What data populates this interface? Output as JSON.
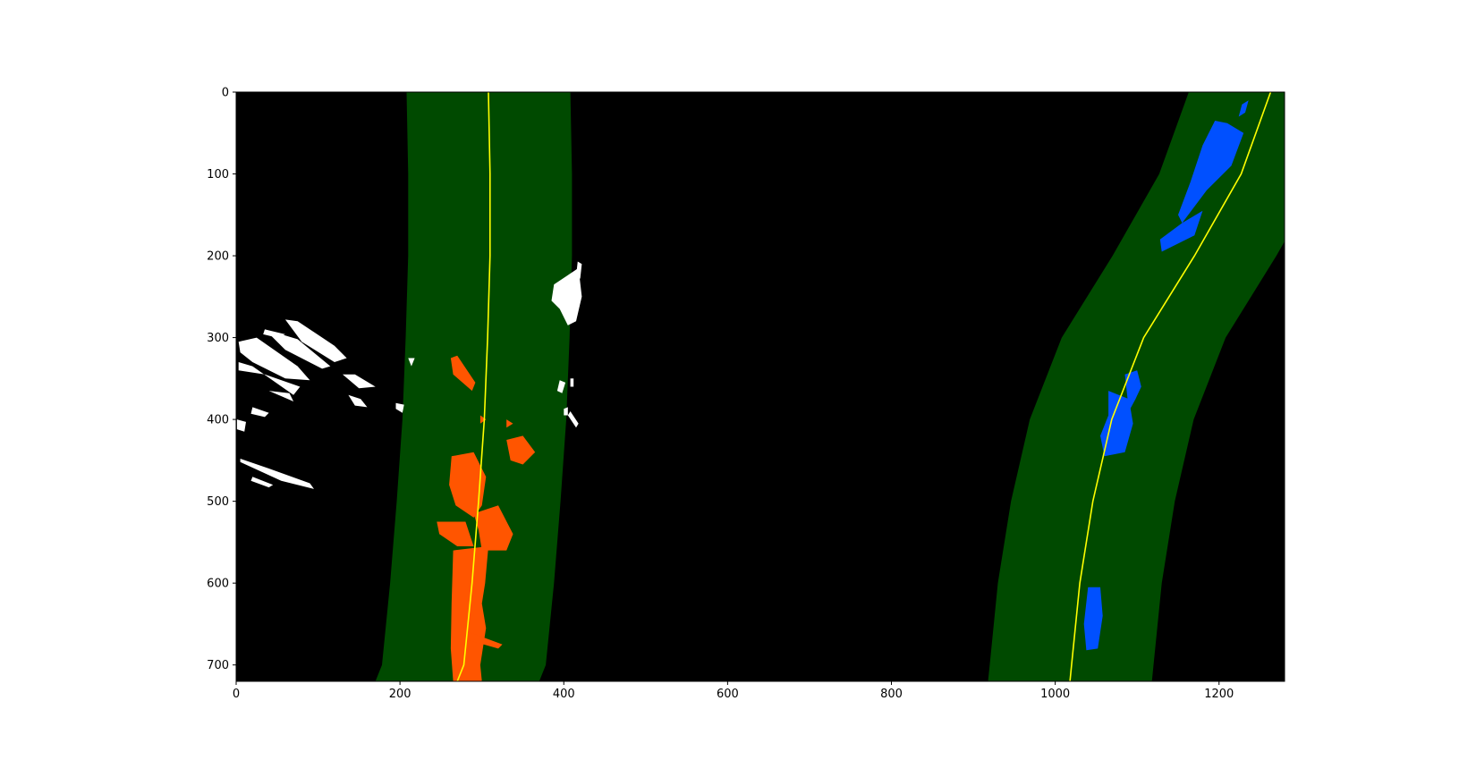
{
  "chart_data": {
    "type": "scatter",
    "title": "",
    "xlabel": "",
    "ylabel": "",
    "xlim": [
      0,
      1280
    ],
    "ylim": [
      720,
      0
    ],
    "y_axis_inverted": true,
    "grid": false,
    "background_color": "#000000",
    "x_ticks": [
      0,
      200,
      400,
      600,
      800,
      1000,
      1200
    ],
    "y_ticks": [
      0,
      100,
      200,
      300,
      400,
      500,
      600,
      700
    ],
    "search_windows": {
      "color": "#004a00",
      "margin": 100,
      "left_center": [
        [
          308,
          0
        ],
        [
          310,
          100
        ],
        [
          310,
          200
        ],
        [
          307,
          300
        ],
        [
          303,
          400
        ],
        [
          296,
          500
        ],
        [
          288,
          600
        ],
        [
          278,
          700
        ],
        [
          270,
          720
        ]
      ],
      "right_center": [
        [
          1263,
          0
        ],
        [
          1227,
          100
        ],
        [
          1170,
          200
        ],
        [
          1108,
          300
        ],
        [
          1069,
          400
        ],
        [
          1046,
          500
        ],
        [
          1030,
          600
        ],
        [
          1020,
          700
        ],
        [
          1018,
          720
        ]
      ]
    },
    "series": [
      {
        "type": "line",
        "color": "#ffff00",
        "points": [
          [
            308,
            0
          ],
          [
            310,
            100
          ],
          [
            310,
            200
          ],
          [
            307,
            300
          ],
          [
            303,
            400
          ],
          [
            296,
            500
          ],
          [
            288,
            600
          ],
          [
            278,
            700
          ],
          [
            270,
            720
          ]
        ]
      },
      {
        "type": "line",
        "color": "#ffff00",
        "points": [
          [
            1263,
            0
          ],
          [
            1227,
            100
          ],
          [
            1170,
            200
          ],
          [
            1108,
            300
          ],
          [
            1069,
            400
          ],
          [
            1046,
            500
          ],
          [
            1030,
            600
          ],
          [
            1020,
            700
          ],
          [
            1018,
            720
          ]
        ]
      },
      {
        "type": "pixels",
        "color": "#ff5500",
        "regions": [
          [
            [
              263,
              625
            ],
            [
              300,
              625
            ],
            [
              305,
              655
            ],
            [
              298,
              700
            ],
            [
              300,
              720
            ],
            [
              265,
              720
            ],
            [
              262,
              680
            ]
          ],
          [
            [
              265,
              560
            ],
            [
              308,
              555
            ],
            [
              304,
              600
            ],
            [
              300,
              625
            ],
            [
              263,
              625
            ]
          ],
          [
            [
              245,
              525
            ],
            [
              280,
              525
            ],
            [
              290,
              555
            ],
            [
              270,
              555
            ],
            [
              248,
              540
            ]
          ],
          [
            [
              290,
              515
            ],
            [
              320,
              505
            ],
            [
              338,
              540
            ],
            [
              330,
              560
            ],
            [
              300,
              560
            ],
            [
              296,
              535
            ]
          ],
          [
            [
              263,
              445
            ],
            [
              290,
              440
            ],
            [
              305,
              470
            ],
            [
              300,
              505
            ],
            [
              290,
              520
            ],
            [
              268,
              505
            ],
            [
              260,
              480
            ]
          ],
          [
            [
              330,
              425
            ],
            [
              350,
              420
            ],
            [
              365,
              440
            ],
            [
              350,
              455
            ],
            [
              335,
              450
            ]
          ],
          [
            [
              262,
              325
            ],
            [
              270,
              322
            ],
            [
              292,
              355
            ],
            [
              288,
              365
            ],
            [
              265,
              345
            ]
          ],
          [
            [
              298,
              395
            ],
            [
              305,
              400
            ],
            [
              298,
              405
            ]
          ],
          [
            [
              330,
              400
            ],
            [
              338,
              405
            ],
            [
              330,
              410
            ]
          ],
          [
            [
              285,
              660
            ],
            [
              325,
              675
            ],
            [
              320,
              680
            ],
            [
              285,
              670
            ]
          ]
        ]
      },
      {
        "type": "pixels",
        "color": "#0050ff",
        "regions": [
          [
            [
              1195,
              35
            ],
            [
              1210,
              38
            ],
            [
              1230,
              50
            ],
            [
              1215,
              90
            ],
            [
              1185,
              120
            ],
            [
              1155,
              160
            ],
            [
              1150,
              150
            ],
            [
              1165,
              110
            ],
            [
              1180,
              65
            ]
          ],
          [
            [
              1155,
              160
            ],
            [
              1180,
              145
            ],
            [
              1170,
              175
            ],
            [
              1130,
              195
            ],
            [
              1128,
              180
            ]
          ],
          [
            [
              1228,
              15
            ],
            [
              1236,
              10
            ],
            [
              1232,
              25
            ],
            [
              1224,
              30
            ]
          ],
          [
            [
              1085,
              345
            ],
            [
              1100,
              340
            ],
            [
              1105,
              360
            ],
            [
              1098,
              375
            ],
            [
              1090,
              390
            ]
          ],
          [
            [
              1065,
              365
            ],
            [
              1090,
              375
            ],
            [
              1095,
              405
            ],
            [
              1085,
              440
            ],
            [
              1060,
              445
            ],
            [
              1055,
              420
            ],
            [
              1065,
              395
            ]
          ],
          [
            [
              1040,
              605
            ],
            [
              1055,
              605
            ],
            [
              1058,
              640
            ],
            [
              1052,
              680
            ],
            [
              1038,
              682
            ],
            [
              1035,
              650
            ]
          ]
        ]
      },
      {
        "type": "pixels",
        "color": "#ffffff",
        "regions": [
          [
            [
              3,
              305
            ],
            [
              25,
              300
            ],
            [
              75,
              335
            ],
            [
              90,
              352
            ],
            [
              60,
              350
            ],
            [
              20,
              330
            ],
            [
              5,
              318
            ]
          ],
          [
            [
              3,
              330
            ],
            [
              20,
              335
            ],
            [
              70,
              370
            ],
            [
              78,
              360
            ],
            [
              35,
              345
            ],
            [
              3,
              340
            ]
          ],
          [
            [
              40,
              365
            ],
            [
              70,
              378
            ],
            [
              65,
              368
            ]
          ],
          [
            [
              60,
              278
            ],
            [
              75,
              280
            ],
            [
              120,
              310
            ],
            [
              135,
              325
            ],
            [
              120,
              330
            ],
            [
              80,
              305
            ]
          ],
          [
            [
              35,
              290
            ],
            [
              75,
              302
            ],
            [
              115,
              335
            ],
            [
              105,
              338
            ],
            [
              60,
              315
            ]
          ],
          [
            [
              35,
              290
            ],
            [
              60,
              296
            ],
            [
              50,
              300
            ],
            [
              33,
              296
            ]
          ],
          [
            [
              130,
              345
            ],
            [
              145,
              345
            ],
            [
              170,
              360
            ],
            [
              150,
              362
            ]
          ],
          [
            [
              137,
              370
            ],
            [
              152,
              375
            ],
            [
              160,
              385
            ],
            [
              145,
              383
            ]
          ],
          [
            [
              1,
              400
            ],
            [
              12,
              403
            ],
            [
              10,
              415
            ],
            [
              1,
              412
            ]
          ],
          [
            [
              20,
              385
            ],
            [
              40,
              392
            ],
            [
              35,
              397
            ],
            [
              18,
              393
            ]
          ],
          [
            [
              5,
              452
            ],
            [
              55,
              475
            ],
            [
              95,
              485
            ],
            [
              90,
              478
            ],
            [
              40,
              460
            ],
            [
              5,
              448
            ]
          ],
          [
            [
              20,
              470
            ],
            [
              45,
              480
            ],
            [
              40,
              483
            ],
            [
              18,
              475
            ]
          ],
          [
            [
              195,
              380
            ],
            [
              205,
              382
            ],
            [
              203,
              392
            ],
            [
              195,
              387
            ]
          ],
          [
            [
              210,
              325
            ],
            [
              218,
              325
            ],
            [
              214,
              335
            ]
          ],
          [
            [
              388,
              235
            ],
            [
              418,
              215
            ],
            [
              422,
              250
            ],
            [
              415,
              280
            ],
            [
              405,
              285
            ],
            [
              395,
              265
            ],
            [
              385,
              255
            ]
          ],
          [
            [
              417,
              207
            ],
            [
              422,
              210
            ],
            [
              420,
              228
            ],
            [
              415,
              225
            ]
          ],
          [
            [
              395,
              352
            ],
            [
              402,
              355
            ],
            [
              398,
              368
            ],
            [
              392,
              365
            ]
          ],
          [
            [
              408,
              350
            ],
            [
              412,
              350
            ],
            [
              412,
              360
            ],
            [
              408,
              360
            ]
          ],
          [
            [
              400,
              387
            ],
            [
              405,
              385
            ],
            [
              405,
              395
            ],
            [
              400,
              395
            ]
          ],
          [
            [
              405,
              395
            ],
            [
              415,
              410
            ],
            [
              418,
              405
            ],
            [
              408,
              390
            ]
          ]
        ]
      }
    ]
  }
}
